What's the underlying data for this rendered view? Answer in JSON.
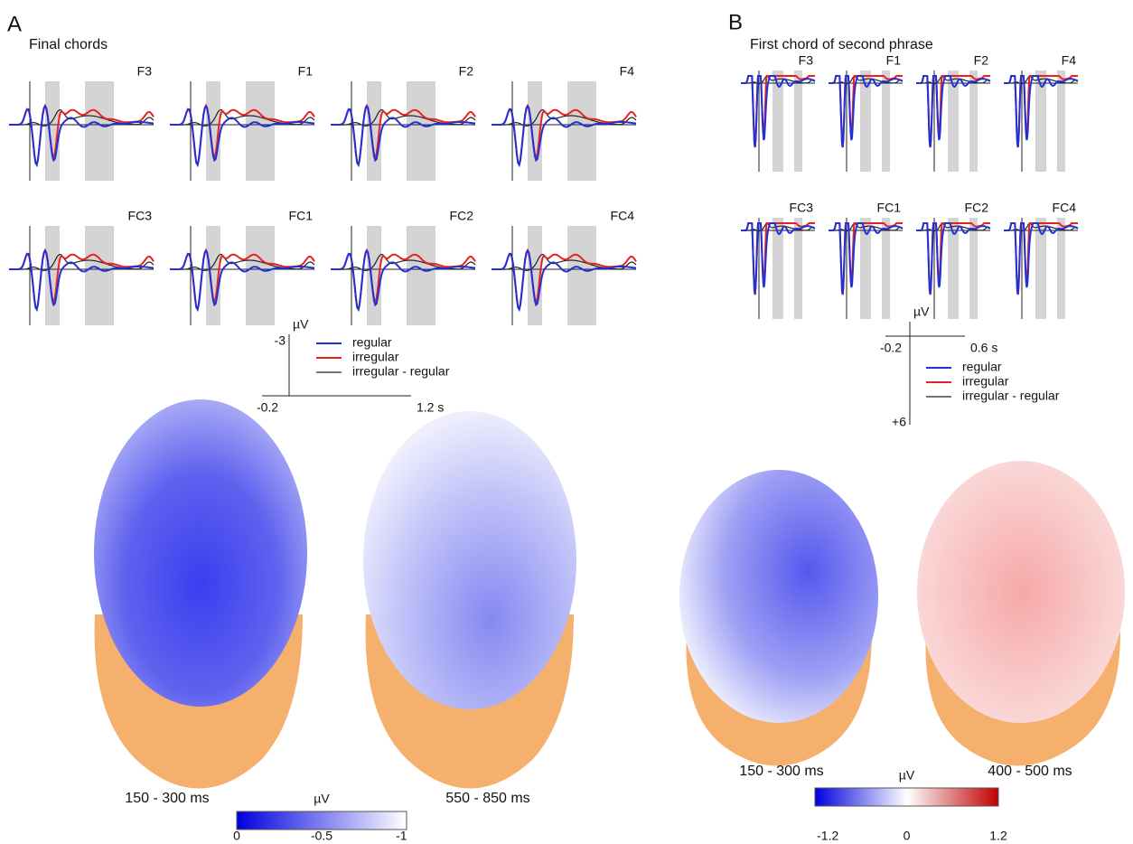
{
  "panels": [
    {
      "label": "A",
      "title": "Final chords",
      "electrodes": [
        "F3",
        "F1",
        "F2",
        "F4",
        "FC3",
        "FC1",
        "FC2",
        "FC4"
      ],
      "scale": {
        "unit": "µV",
        "y_end": "-3",
        "x_start": "-0.2",
        "x_end": "1.2 s"
      },
      "legend": [
        "regular",
        "irregular",
        "irregular - regular"
      ],
      "maps": [
        "150 - 300 ms",
        "550 - 850 ms"
      ],
      "colorbar": {
        "unit": "µV",
        "ticks": [
          "0",
          "-0.5",
          "-1"
        ]
      }
    },
    {
      "label": "B",
      "title": "First chord of second phrase",
      "electrodes": [
        "F3",
        "F1",
        "F2",
        "F4",
        "FC3",
        "FC1",
        "FC2",
        "FC4"
      ],
      "scale": {
        "unit": "µV",
        "y_end": "+6",
        "x_start": "-0.2",
        "x_end": "0.6 s"
      },
      "legend": [
        "regular",
        "irregular",
        "irregular - regular"
      ],
      "maps": [
        "150 - 300 ms",
        "400 - 500 ms"
      ],
      "colorbar": {
        "unit": "µV",
        "ticks": [
          "-1.2",
          "0",
          "1.2"
        ]
      }
    }
  ]
}
